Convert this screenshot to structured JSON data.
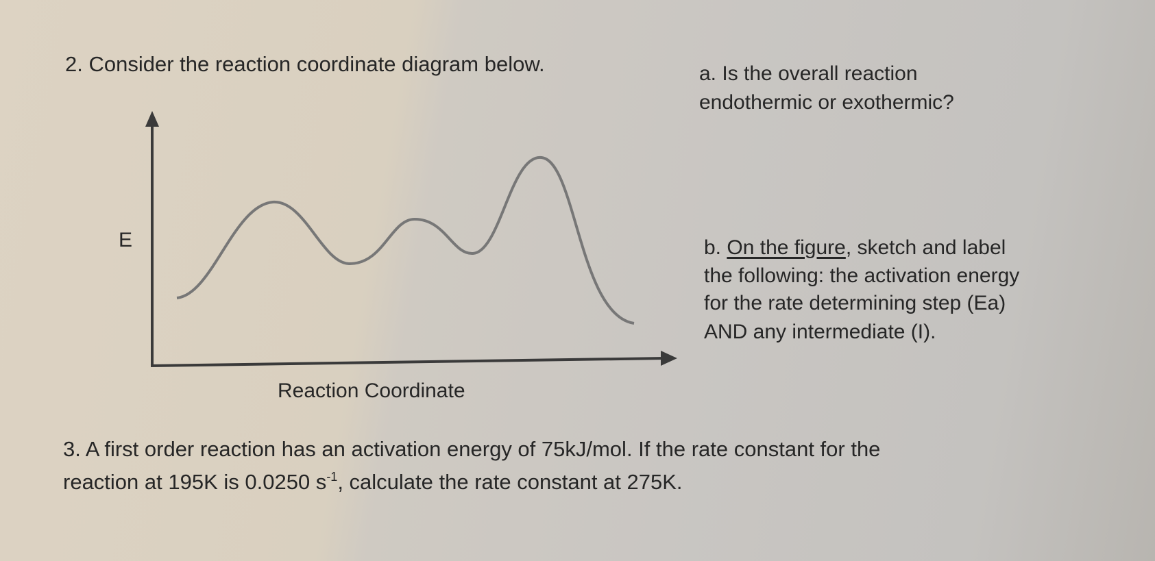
{
  "question2": {
    "text": "2. Consider the reaction coordinate diagram below.",
    "diagram": {
      "y_axis_label": "E",
      "x_axis_label": "Reaction Coordinate"
    },
    "part_a": {
      "lines": [
        "a. Is the overall reaction",
        "endothermic or exothermic?"
      ]
    },
    "part_b": {
      "number": "b.",
      "underlined": "On the figure",
      "lines": [
        ", sketch and label",
        "the following: the activation energy",
        "for the rate determining step (Ea)",
        "AND any intermediate (I)."
      ]
    }
  },
  "question3": {
    "line1": "3. A first order reaction has an activation energy of 75kJ/mol.  If the rate constant for the",
    "line2": "reaction at 195K is 0.0250 s",
    "superscript": "-1",
    "line2_end": ", calculate the rate constant at 275K."
  }
}
